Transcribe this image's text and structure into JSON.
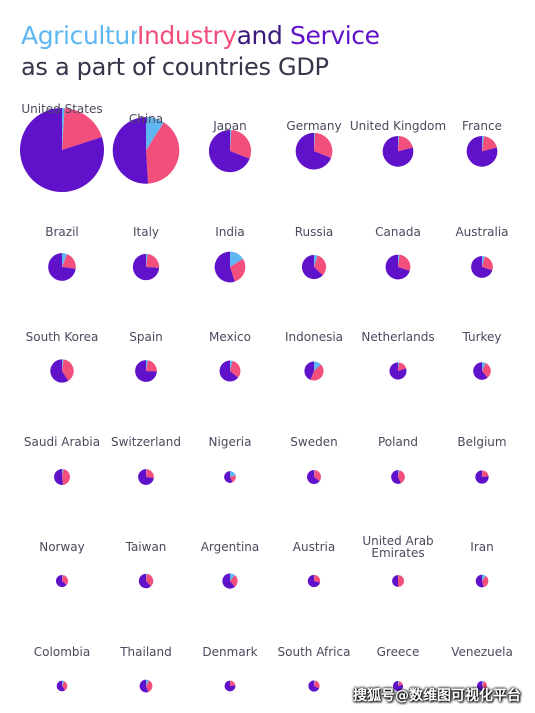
{
  "title": {
    "agriculture": "Agriculture",
    "industry": "Industry",
    "and": "and",
    "service": "Service",
    "line2": "as a part of countries GDP"
  },
  "colors": {
    "agriculture": "#5eb7f0",
    "industry": "#f24f7c",
    "service": "#5f12c9"
  },
  "watermark": "搜狐号@数维图可视化平台",
  "chart_data": {
    "type": "pie",
    "title": "Agriculture, Industry and Service as a part of countries GDP",
    "segments": [
      "Agriculture",
      "Industry",
      "Service"
    ],
    "size_encodes": "GDP",
    "countries": [
      {
        "name": "United States",
        "gdp": 19.4,
        "agriculture": 1,
        "industry": 19,
        "service": 80
      },
      {
        "name": "China",
        "gdp": 12.2,
        "agriculture": 9,
        "industry": 40,
        "service": 51
      },
      {
        "name": "Japan",
        "gdp": 4.9,
        "agriculture": 1,
        "industry": 30,
        "service": 69
      },
      {
        "name": "Germany",
        "gdp": 3.7,
        "agriculture": 1,
        "industry": 30,
        "service": 69
      },
      {
        "name": "United Kingdom",
        "gdp": 2.6,
        "agriculture": 1,
        "industry": 20,
        "service": 79
      },
      {
        "name": "France",
        "gdp": 2.6,
        "agriculture": 2,
        "industry": 19,
        "service": 79
      },
      {
        "name": "Brazil",
        "gdp": 2.1,
        "agriculture": 6,
        "industry": 21,
        "service": 73
      },
      {
        "name": "Italy",
        "gdp": 1.9,
        "agriculture": 2,
        "industry": 24,
        "service": 74
      },
      {
        "name": "India",
        "gdp": 2.6,
        "agriculture": 16,
        "industry": 29,
        "service": 55
      },
      {
        "name": "Russia",
        "gdp": 1.6,
        "agriculture": 5,
        "industry": 32,
        "service": 63
      },
      {
        "name": "Canada",
        "gdp": 1.7,
        "agriculture": 2,
        "industry": 28,
        "service": 70
      },
      {
        "name": "Australia",
        "gdp": 1.3,
        "agriculture": 4,
        "industry": 26,
        "service": 70
      },
      {
        "name": "South Korea",
        "gdp": 1.5,
        "agriculture": 2,
        "industry": 39,
        "service": 59
      },
      {
        "name": "Spain",
        "gdp": 1.3,
        "agriculture": 3,
        "industry": 23,
        "service": 74
      },
      {
        "name": "Mexico",
        "gdp": 1.2,
        "agriculture": 4,
        "industry": 32,
        "service": 64
      },
      {
        "name": "Indonesia",
        "gdp": 1.0,
        "agriculture": 13,
        "industry": 43,
        "service": 44
      },
      {
        "name": "Netherlands",
        "gdp": 0.8,
        "agriculture": 2,
        "industry": 18,
        "service": 80
      },
      {
        "name": "Turkey",
        "gdp": 0.85,
        "agriculture": 7,
        "industry": 32,
        "service": 61
      },
      {
        "name": "Saudi Arabia",
        "gdp": 0.7,
        "agriculture": 3,
        "industry": 45,
        "service": 52
      },
      {
        "name": "Switzerland",
        "gdp": 0.68,
        "agriculture": 1,
        "industry": 26,
        "service": 73
      },
      {
        "name": "Nigeria",
        "gdp": 0.38,
        "agriculture": 21,
        "industry": 22,
        "service": 57
      },
      {
        "name": "Sweden",
        "gdp": 0.54,
        "agriculture": 2,
        "industry": 33,
        "service": 65
      },
      {
        "name": "Poland",
        "gdp": 0.52,
        "agriculture": 3,
        "industry": 40,
        "service": 57
      },
      {
        "name": "Belgium",
        "gdp": 0.49,
        "agriculture": 1,
        "industry": 22,
        "service": 77
      },
      {
        "name": "Norway",
        "gdp": 0.4,
        "agriculture": 2,
        "industry": 34,
        "service": 64
      },
      {
        "name": "Taiwan",
        "gdp": 0.57,
        "agriculture": 2,
        "industry": 36,
        "service": 62
      },
      {
        "name": "Argentina",
        "gdp": 0.64,
        "agriculture": 11,
        "industry": 28,
        "service": 61
      },
      {
        "name": "Austria",
        "gdp": 0.42,
        "agriculture": 1,
        "industry": 28,
        "service": 71
      },
      {
        "name": "United Arab Emirates",
        "gdp": 0.38,
        "agriculture": 1,
        "industry": 49,
        "service": 50
      },
      {
        "name": "Iran",
        "gdp": 0.44,
        "agriculture": 10,
        "industry": 36,
        "service": 54
      },
      {
        "name": "Colombia",
        "gdp": 0.31,
        "agriculture": 7,
        "industry": 33,
        "service": 60
      },
      {
        "name": "Thailand",
        "gdp": 0.45,
        "agriculture": 8,
        "industry": 36,
        "service": 56
      },
      {
        "name": "Denmark",
        "gdp": 0.32,
        "agriculture": 1,
        "industry": 22,
        "service": 77
      },
      {
        "name": "South Africa",
        "gdp": 0.35,
        "agriculture": 3,
        "industry": 29,
        "service": 68
      },
      {
        "name": "Greece",
        "gdp": 0.2,
        "agriculture": 4,
        "industry": 16,
        "service": 80
      },
      {
        "name": "Venezuela",
        "gdp": 0.21,
        "agriculture": 5,
        "industry": 37,
        "service": 58
      }
    ]
  }
}
